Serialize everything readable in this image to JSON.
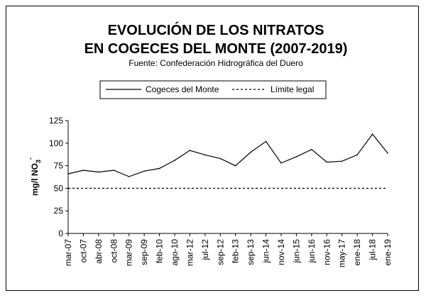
{
  "chart_data": {
    "type": "line",
    "title_line1": "EVOLUCIÓN DE LOS NITRATOS",
    "title_line2": "EN COGECES DEL MONTE (2007-2019)",
    "subtitle": "Fuente: Confederación Hidrográfica del Duero",
    "ylabel": "mg/l NO",
    "ylabel_sub": "3",
    "ylabel_sup": "-",
    "ylim": [
      0,
      125
    ],
    "yticks": [
      0,
      25,
      50,
      75,
      100,
      125
    ],
    "grid": false,
    "legend_position": "top",
    "categories": [
      "mar-07",
      "oct-07",
      "abr-08",
      "oct-08",
      "mar-09",
      "sep-09",
      "feb-10",
      "ago-10",
      "mar-12",
      "jul-12",
      "sep-12",
      "feb-13",
      "sep-13",
      "jun-14",
      "nov-14",
      "jun-15",
      "jun-16",
      "nov-16",
      "may-17",
      "ene-18",
      "jul-18",
      "ene-19"
    ],
    "series": [
      {
        "name": "Cogeces del Monte",
        "style": "solid",
        "color": "#000000",
        "values": [
          66,
          70,
          68,
          70,
          63,
          69,
          72,
          81,
          92,
          87,
          83,
          75,
          90,
          102,
          78,
          85,
          93,
          79,
          80,
          87,
          110,
          89
        ]
      },
      {
        "name": "Límite legal",
        "style": "dashed",
        "color": "#000000",
        "constant": 50
      }
    ]
  }
}
